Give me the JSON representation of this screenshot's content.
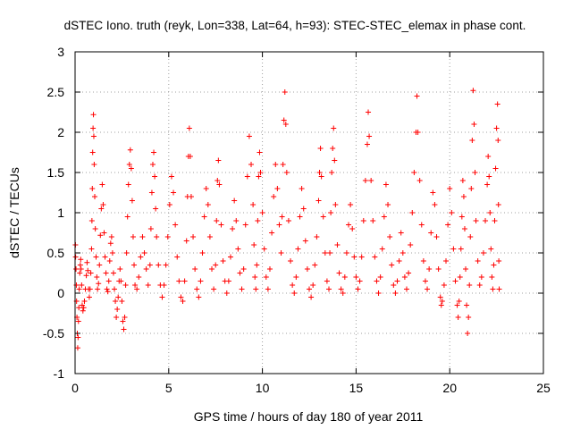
{
  "chart_data": {
    "type": "scatter",
    "title": "dSTEC Iono. truth (reyk, Lon=338, Lat=64, h=93): STEC-STEC_elemax in phase cont.",
    "xlabel": "GPS time / hours of day 180 of year 2011",
    "ylabel": "dSTEC  / TECUs",
    "xlim": [
      0,
      25
    ],
    "ylim": [
      -1,
      3
    ],
    "x_ticks": [
      "0",
      "5",
      "10",
      "15",
      "20",
      "25"
    ],
    "y_ticks": [
      "-1",
      "-0.5",
      "0",
      "0.5",
      "1",
      "1.5",
      "2",
      "2.5",
      "3"
    ],
    "grid": true,
    "marker": "+",
    "color": "#ff0000",
    "series": [
      {
        "points": [
          [
            0.02,
            0.6
          ],
          [
            0.03,
            0.45
          ],
          [
            0.05,
            0.3
          ],
          [
            0.07,
            0.1
          ],
          [
            0.08,
            -0.1
          ],
          [
            0.1,
            -0.3
          ],
          [
            0.12,
            -0.5
          ],
          [
            0.14,
            -0.68
          ],
          [
            0.16,
            -0.55
          ],
          [
            0.18,
            -0.35
          ],
          [
            0.2,
            -0.18
          ],
          [
            0.22,
            0.05
          ],
          [
            0.25,
            0.25
          ],
          [
            0.28,
            0.35
          ],
          [
            0.3,
            0.42
          ],
          [
            0.32,
            0.3
          ],
          [
            0.35,
            0.1
          ],
          [
            0.38,
            -0.15
          ],
          [
            0.42,
            -0.22
          ],
          [
            0.46,
            -0.18
          ],
          [
            0.5,
            -0.1
          ],
          [
            0.55,
            0.05
          ],
          [
            0.6,
            0.22
          ],
          [
            0.64,
            0.38
          ],
          [
            0.68,
            0.28
          ],
          [
            0.72,
            0.05
          ],
          [
            0.76,
            -0.05
          ],
          [
            0.8,
            0.05
          ],
          [
            0.84,
            0.25
          ],
          [
            0.88,
            0.55
          ],
          [
            0.9,
            0.9
          ],
          [
            0.92,
            1.3
          ],
          [
            0.94,
            1.75
          ],
          [
            0.96,
            2.05
          ],
          [
            0.98,
            2.22
          ],
          [
            1.0,
            1.95
          ],
          [
            1.02,
            1.6
          ],
          [
            1.05,
            1.2
          ],
          [
            1.08,
            0.8
          ],
          [
            1.12,
            0.45
          ],
          [
            1.16,
            0.2
          ],
          [
            1.2,
            0.05
          ],
          [
            1.25,
            0.12
          ],
          [
            1.3,
            0.35
          ],
          [
            1.35,
            0.72
          ],
          [
            1.4,
            1.05
          ],
          [
            1.45,
            1.35
          ],
          [
            1.5,
            1.1
          ],
          [
            1.55,
            0.75
          ],
          [
            1.6,
            0.45
          ],
          [
            1.65,
            0.25
          ],
          [
            1.7,
            0.05
          ],
          [
            1.75,
            0.02
          ],
          [
            1.8,
            0.15
          ],
          [
            1.85,
            0.4
          ],
          [
            1.9,
            0.62
          ],
          [
            1.95,
            0.7
          ],
          [
            2.0,
            0.5
          ],
          [
            2.05,
            0.25
          ],
          [
            2.1,
            0.05
          ],
          [
            2.15,
            -0.1
          ],
          [
            2.2,
            -0.3
          ],
          [
            2.25,
            -0.2
          ],
          [
            2.3,
            -0.05
          ],
          [
            2.35,
            0.15
          ],
          [
            2.4,
            0.3
          ],
          [
            2.45,
            0.15
          ],
          [
            2.5,
            -0.1
          ],
          [
            2.55,
            -0.35
          ],
          [
            2.6,
            -0.45
          ],
          [
            2.65,
            -0.3
          ],
          [
            2.7,
            0.1
          ],
          [
            2.75,
            0.5
          ],
          [
            2.8,
            0.95
          ],
          [
            2.85,
            1.35
          ],
          [
            2.9,
            1.6
          ],
          [
            2.95,
            1.78
          ],
          [
            3.0,
            1.55
          ],
          [
            3.05,
            1.15
          ],
          [
            3.1,
            0.7
          ],
          [
            3.15,
            0.35
          ],
          [
            3.2,
            0.1
          ],
          [
            3.3,
            0.05
          ],
          [
            3.4,
            0.2
          ],
          [
            3.5,
            0.45
          ],
          [
            3.6,
            0.7
          ],
          [
            3.7,
            0.5
          ],
          [
            3.8,
            0.3
          ],
          [
            3.9,
            0.1
          ],
          [
            4.0,
            0.35
          ],
          [
            4.05,
            0.8
          ],
          [
            4.1,
            1.25
          ],
          [
            4.15,
            1.6
          ],
          [
            4.2,
            1.75
          ],
          [
            4.25,
            1.45
          ],
          [
            4.3,
            1.05
          ],
          [
            4.35,
            0.7
          ],
          [
            4.45,
            0.35
          ],
          [
            4.55,
            0.1
          ],
          [
            4.65,
            -0.05
          ],
          [
            4.75,
            0.1
          ],
          [
            4.85,
            0.35
          ],
          [
            4.95,
            0.7
          ],
          [
            5.05,
            1.1
          ],
          [
            5.15,
            1.45
          ],
          [
            5.25,
            1.25
          ],
          [
            5.35,
            0.85
          ],
          [
            5.45,
            0.45
          ],
          [
            5.55,
            0.15
          ],
          [
            5.65,
            -0.05
          ],
          [
            5.75,
            -0.1
          ],
          [
            5.85,
            0.15
          ],
          [
            5.95,
            0.65
          ],
          [
            6.0,
            1.2
          ],
          [
            6.05,
            1.7
          ],
          [
            6.1,
            2.05
          ],
          [
            6.15,
            1.7
          ],
          [
            6.2,
            1.2
          ],
          [
            6.3,
            0.7
          ],
          [
            6.4,
            0.3
          ],
          [
            6.5,
            0.05
          ],
          [
            6.6,
            -0.05
          ],
          [
            6.7,
            0.15
          ],
          [
            6.8,
            0.5
          ],
          [
            6.9,
            0.95
          ],
          [
            7.0,
            1.3
          ],
          [
            7.1,
            1.1
          ],
          [
            7.2,
            0.7
          ],
          [
            7.3,
            0.3
          ],
          [
            7.4,
            0.05
          ],
          [
            7.5,
            0.35
          ],
          [
            7.55,
            0.9
          ],
          [
            7.6,
            1.4
          ],
          [
            7.65,
            1.65
          ],
          [
            7.7,
            1.35
          ],
          [
            7.8,
            0.85
          ],
          [
            7.9,
            0.4
          ],
          [
            8.0,
            0.15
          ],
          [
            8.1,
            0.0
          ],
          [
            8.2,
            0.15
          ],
          [
            8.3,
            0.45
          ],
          [
            8.4,
            0.8
          ],
          [
            8.5,
            1.15
          ],
          [
            8.6,
            0.9
          ],
          [
            8.7,
            0.55
          ],
          [
            8.8,
            0.25
          ],
          [
            8.9,
            0.05
          ],
          [
            9.0,
            0.3
          ],
          [
            9.1,
            0.85
          ],
          [
            9.2,
            1.45
          ],
          [
            9.3,
            1.95
          ],
          [
            9.4,
            1.6
          ],
          [
            9.5,
            1.1
          ],
          [
            9.55,
            0.6
          ],
          [
            9.6,
            0.2
          ],
          [
            9.65,
            0.05
          ],
          [
            9.7,
            0.35
          ],
          [
            9.75,
            0.9
          ],
          [
            9.8,
            1.45
          ],
          [
            9.85,
            1.75
          ],
          [
            9.9,
            1.5
          ],
          [
            10.0,
            1.0
          ],
          [
            10.1,
            0.55
          ],
          [
            10.2,
            0.2
          ],
          [
            10.3,
            0.05
          ],
          [
            10.4,
            0.3
          ],
          [
            10.5,
            0.75
          ],
          [
            10.6,
            1.2
          ],
          [
            10.7,
            1.6
          ],
          [
            10.8,
            1.3
          ],
          [
            10.9,
            0.85
          ],
          [
            11.0,
            0.5
          ],
          [
            11.05,
            0.95
          ],
          [
            11.1,
            1.6
          ],
          [
            11.15,
            2.15
          ],
          [
            11.2,
            2.5
          ],
          [
            11.25,
            2.1
          ],
          [
            11.3,
            1.5
          ],
          [
            11.4,
            0.9
          ],
          [
            11.5,
            0.4
          ],
          [
            11.6,
            0.1
          ],
          [
            11.7,
            0.0
          ],
          [
            11.8,
            0.2
          ],
          [
            11.9,
            0.55
          ],
          [
            12.0,
            0.95
          ],
          [
            12.1,
            1.3
          ],
          [
            12.2,
            1.05
          ],
          [
            12.3,
            0.65
          ],
          [
            12.4,
            0.3
          ],
          [
            12.5,
            0.05
          ],
          [
            12.6,
            -0.05
          ],
          [
            12.7,
            0.1
          ],
          [
            12.8,
            0.35
          ],
          [
            12.9,
            0.7
          ],
          [
            13.0,
            1.15
          ],
          [
            13.05,
            1.5
          ],
          [
            13.1,
            1.8
          ],
          [
            13.15,
            1.45
          ],
          [
            13.25,
            0.95
          ],
          [
            13.35,
            0.5
          ],
          [
            13.45,
            0.15
          ],
          [
            13.55,
            0.05
          ],
          [
            13.6,
            0.5
          ],
          [
            13.65,
            1.0
          ],
          [
            13.7,
            1.5
          ],
          [
            13.75,
            1.8
          ],
          [
            13.8,
            2.05
          ],
          [
            13.85,
            1.65
          ],
          [
            13.9,
            1.1
          ],
          [
            14.0,
            0.6
          ],
          [
            14.1,
            0.25
          ],
          [
            14.2,
            0.05
          ],
          [
            14.3,
            0.0
          ],
          [
            14.4,
            0.2
          ],
          [
            14.5,
            0.5
          ],
          [
            14.6,
            0.85
          ],
          [
            14.7,
            1.1
          ],
          [
            14.8,
            0.8
          ],
          [
            14.9,
            0.45
          ],
          [
            15.0,
            0.2
          ],
          [
            15.1,
            0.05
          ],
          [
            15.2,
            0.15
          ],
          [
            15.3,
            0.45
          ],
          [
            15.4,
            0.9
          ],
          [
            15.5,
            1.4
          ],
          [
            15.6,
            1.85
          ],
          [
            15.65,
            2.25
          ],
          [
            15.7,
            1.95
          ],
          [
            15.8,
            1.4
          ],
          [
            15.9,
            0.9
          ],
          [
            16.0,
            0.45
          ],
          [
            16.1,
            0.15
          ],
          [
            16.2,
            0.0
          ],
          [
            16.3,
            0.2
          ],
          [
            16.4,
            0.55
          ],
          [
            16.5,
            0.95
          ],
          [
            16.6,
            1.35
          ],
          [
            16.7,
            1.1
          ],
          [
            16.8,
            0.7
          ],
          [
            16.9,
            0.35
          ],
          [
            17.0,
            0.1
          ],
          [
            17.1,
            0.0
          ],
          [
            17.2,
            0.15
          ],
          [
            17.3,
            0.4
          ],
          [
            17.4,
            0.75
          ],
          [
            17.5,
            0.5
          ],
          [
            17.6,
            0.2
          ],
          [
            17.7,
            0.05
          ],
          [
            17.8,
            0.25
          ],
          [
            17.9,
            0.6
          ],
          [
            18.0,
            1.0
          ],
          [
            18.1,
            1.5
          ],
          [
            18.2,
            2.0
          ],
          [
            18.25,
            2.45
          ],
          [
            18.3,
            2.0
          ],
          [
            18.4,
            1.4
          ],
          [
            18.5,
            0.85
          ],
          [
            18.6,
            0.4
          ],
          [
            18.7,
            0.15
          ],
          [
            18.8,
            0.05
          ],
          [
            18.9,
            0.3
          ],
          [
            19.0,
            0.75
          ],
          [
            19.1,
            1.25
          ],
          [
            19.2,
            1.1
          ],
          [
            19.3,
            0.7
          ],
          [
            19.4,
            0.3
          ],
          [
            19.5,
            -0.05
          ],
          [
            19.55,
            -0.15
          ],
          [
            19.6,
            -0.1
          ],
          [
            19.7,
            0.1
          ],
          [
            19.8,
            0.4
          ],
          [
            19.9,
            0.85
          ],
          [
            20.0,
            1.3
          ],
          [
            20.1,
            1.0
          ],
          [
            20.2,
            0.55
          ],
          [
            20.3,
            0.15
          ],
          [
            20.4,
            -0.15
          ],
          [
            20.45,
            -0.3
          ],
          [
            20.5,
            -0.1
          ],
          [
            20.55,
            0.2
          ],
          [
            20.6,
            0.55
          ],
          [
            20.65,
            0.95
          ],
          [
            20.7,
            1.4
          ],
          [
            20.75,
            1.2
          ],
          [
            20.8,
            0.8
          ],
          [
            20.85,
            0.3
          ],
          [
            20.9,
            -0.15
          ],
          [
            20.95,
            -0.5
          ],
          [
            21.0,
            -0.3
          ],
          [
            21.05,
            0.1
          ],
          [
            21.1,
            0.7
          ],
          [
            21.15,
            1.3
          ],
          [
            21.2,
            1.9
          ],
          [
            21.25,
            2.52
          ],
          [
            21.3,
            2.1
          ],
          [
            21.35,
            1.5
          ],
          [
            21.4,
            0.9
          ],
          [
            21.5,
            0.4
          ],
          [
            21.6,
            0.1
          ],
          [
            21.7,
            0.2
          ],
          [
            21.8,
            0.5
          ],
          [
            21.9,
            0.9
          ],
          [
            22.0,
            1.35
          ],
          [
            22.05,
            1.7
          ],
          [
            22.1,
            1.45
          ],
          [
            22.15,
            1.0
          ],
          [
            22.2,
            0.55
          ],
          [
            22.25,
            0.2
          ],
          [
            22.3,
            0.05
          ],
          [
            22.35,
            0.35
          ],
          [
            22.4,
            0.9
          ],
          [
            22.45,
            1.55
          ],
          [
            22.5,
            2.05
          ],
          [
            22.55,
            2.35
          ],
          [
            22.58,
            1.9
          ],
          [
            22.6,
            1.1
          ],
          [
            22.62,
            0.4
          ],
          [
            22.64,
            0.05
          ]
        ]
      }
    ]
  }
}
